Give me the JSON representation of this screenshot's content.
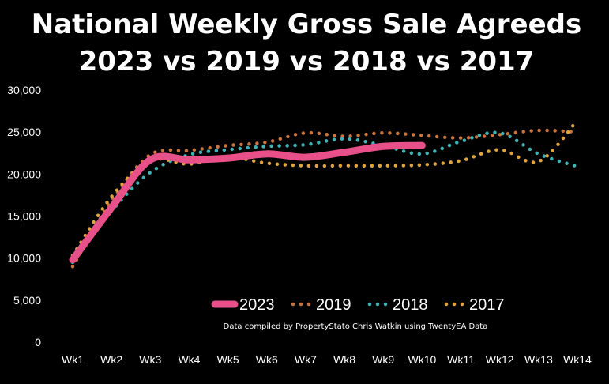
{
  "chart_data": {
    "type": "line",
    "title_lines": [
      "National Weekly Gross Sale Agreeds",
      "2023 vs 2019 vs 2018 vs 2017"
    ],
    "note": "Data compiled by PropertyStato Chris Watkin using TwentyEA Data",
    "categories": [
      "Wk1",
      "Wk2",
      "Wk3",
      "Wk4",
      "Wk5",
      "Wk6",
      "Wk7",
      "Wk8",
      "Wk9",
      "Wk10",
      "Wk11",
      "Wk12",
      "Wk13",
      "Wk14"
    ],
    "ylim": [
      0,
      30000
    ],
    "yticks": [
      0,
      5000,
      10000,
      15000,
      20000,
      25000,
      30000
    ],
    "ytick_labels": [
      "0",
      "5,000",
      "10,000",
      "15,000",
      "20,000",
      "25,000",
      "30,000"
    ],
    "legend_position": "bottom-center",
    "series": [
      {
        "name": "2023",
        "color": "#e8508a",
        "style": "solid",
        "values": [
          9800,
          16000,
          21700,
          21700,
          21900,
          22400,
          22000,
          22600,
          23300,
          23400,
          null,
          null,
          null,
          null
        ]
      },
      {
        "name": "2019",
        "color": "#c8743c",
        "style": "dotted",
        "values": [
          9000,
          16800,
          22300,
          22800,
          23400,
          23800,
          24900,
          24500,
          24900,
          24600,
          24300,
          24700,
          25200,
          25000
        ]
      },
      {
        "name": "2018",
        "color": "#3fb4b8",
        "style": "dotted",
        "values": [
          9500,
          15600,
          20200,
          22300,
          22900,
          23300,
          23500,
          24200,
          23400,
          22400,
          23900,
          24900,
          22400,
          20900
        ]
      },
      {
        "name": "2017",
        "color": "#e0a43c",
        "style": "dotted",
        "values": [
          10300,
          17300,
          21600,
          21200,
          22000,
          21300,
          21000,
          21000,
          21000,
          21100,
          21600,
          22900,
          21500,
          26400
        ]
      }
    ]
  }
}
